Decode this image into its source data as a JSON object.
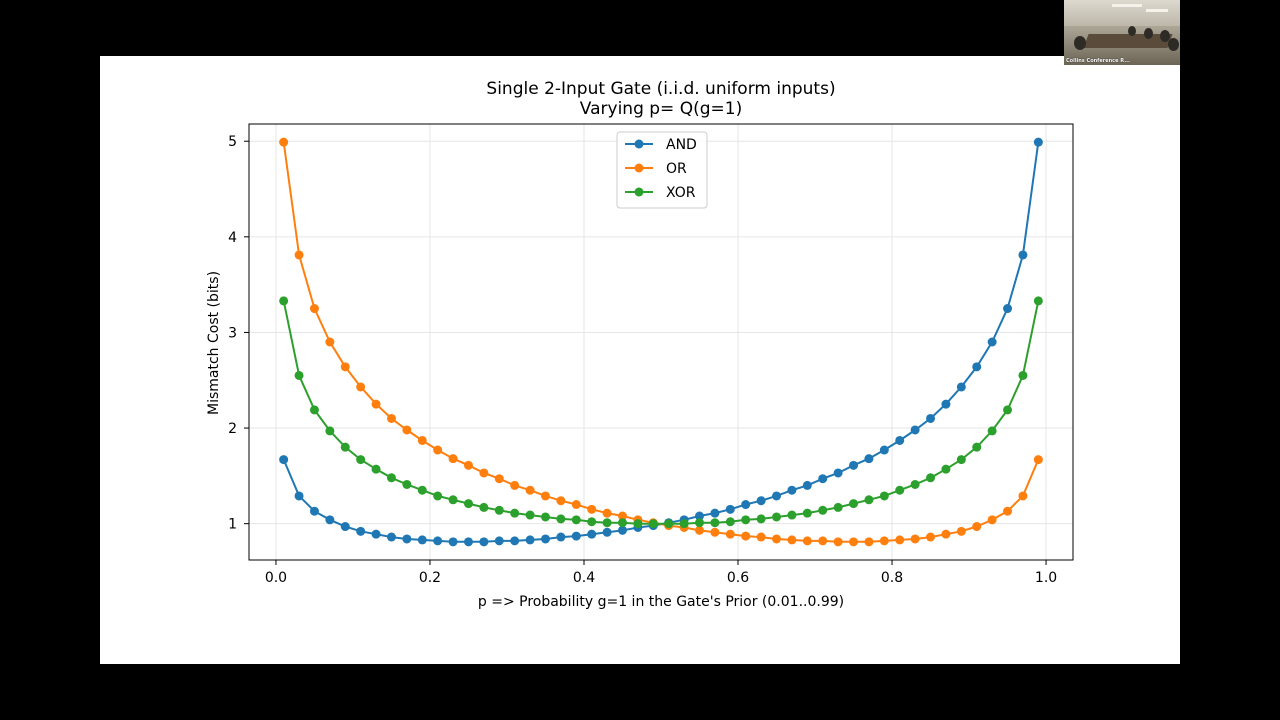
{
  "meeting": {
    "participant_label": "Collins Conference R..."
  },
  "chart_data": {
    "type": "line",
    "title": "Single 2-Input Gate (i.i.d. uniform inputs)",
    "subtitle": "Varying p= Q(g=1)",
    "xlabel": "p => Probability g=1 in the Gate's Prior (0.01..0.99)",
    "ylabel": "Mismatch Cost (bits)",
    "xlim": [
      -0.035,
      1.035
    ],
    "ylim": [
      0.62,
      5.18
    ],
    "x_ticks": [
      0.0,
      0.2,
      0.4,
      0.6,
      0.8,
      1.0
    ],
    "x_tick_labels": [
      "0.0",
      "0.2",
      "0.4",
      "0.6",
      "0.8",
      "1.0"
    ],
    "y_ticks": [
      1,
      2,
      3,
      4,
      5
    ],
    "y_tick_labels": [
      "1",
      "2",
      "3",
      "4",
      "5"
    ],
    "grid": true,
    "legend_position": "upper-center",
    "x": [
      0.01,
      0.03,
      0.05,
      0.07,
      0.09,
      0.11,
      0.13,
      0.15,
      0.17,
      0.19,
      0.21,
      0.23,
      0.25,
      0.27,
      0.29,
      0.31,
      0.33,
      0.35,
      0.37,
      0.39,
      0.41,
      0.43,
      0.45,
      0.47,
      0.49,
      0.51,
      0.53,
      0.55,
      0.57,
      0.59,
      0.61,
      0.63,
      0.65,
      0.67,
      0.69,
      0.71,
      0.73,
      0.75,
      0.77,
      0.79,
      0.81,
      0.83,
      0.85,
      0.87,
      0.89,
      0.91,
      0.93,
      0.95,
      0.97,
      0.99
    ],
    "series": [
      {
        "name": "AND",
        "color": "#1f77b4",
        "values": [
          1.67,
          1.29,
          1.13,
          1.04,
          0.97,
          0.92,
          0.89,
          0.86,
          0.84,
          0.83,
          0.82,
          0.81,
          0.81,
          0.81,
          0.82,
          0.82,
          0.83,
          0.84,
          0.86,
          0.87,
          0.89,
          0.91,
          0.93,
          0.96,
          0.98,
          1.01,
          1.04,
          1.08,
          1.11,
          1.15,
          1.2,
          1.24,
          1.29,
          1.35,
          1.4,
          1.47,
          1.53,
          1.61,
          1.68,
          1.77,
          1.87,
          1.98,
          2.1,
          2.25,
          2.43,
          2.64,
          2.9,
          3.25,
          3.81,
          4.99
        ]
      },
      {
        "name": "OR",
        "color": "#ff7f0e",
        "values": [
          4.99,
          3.81,
          3.25,
          2.9,
          2.64,
          2.43,
          2.25,
          2.1,
          1.98,
          1.87,
          1.77,
          1.68,
          1.61,
          1.53,
          1.47,
          1.4,
          1.35,
          1.29,
          1.24,
          1.2,
          1.15,
          1.11,
          1.08,
          1.04,
          1.01,
          0.98,
          0.96,
          0.93,
          0.91,
          0.89,
          0.87,
          0.86,
          0.84,
          0.83,
          0.82,
          0.82,
          0.81,
          0.81,
          0.81,
          0.82,
          0.83,
          0.84,
          0.86,
          0.89,
          0.92,
          0.97,
          1.04,
          1.13,
          1.29,
          1.67
        ]
      },
      {
        "name": "XOR",
        "color": "#2ca02c",
        "values": [
          3.33,
          2.55,
          2.19,
          1.97,
          1.8,
          1.67,
          1.57,
          1.48,
          1.41,
          1.35,
          1.29,
          1.25,
          1.21,
          1.17,
          1.14,
          1.11,
          1.09,
          1.07,
          1.05,
          1.04,
          1.02,
          1.01,
          1.01,
          1.0,
          1.0,
          1.0,
          1.0,
          1.01,
          1.01,
          1.02,
          1.04,
          1.05,
          1.07,
          1.09,
          1.11,
          1.14,
          1.17,
          1.21,
          1.25,
          1.29,
          1.35,
          1.41,
          1.48,
          1.57,
          1.67,
          1.8,
          1.97,
          2.19,
          2.55,
          3.33
        ]
      }
    ]
  }
}
